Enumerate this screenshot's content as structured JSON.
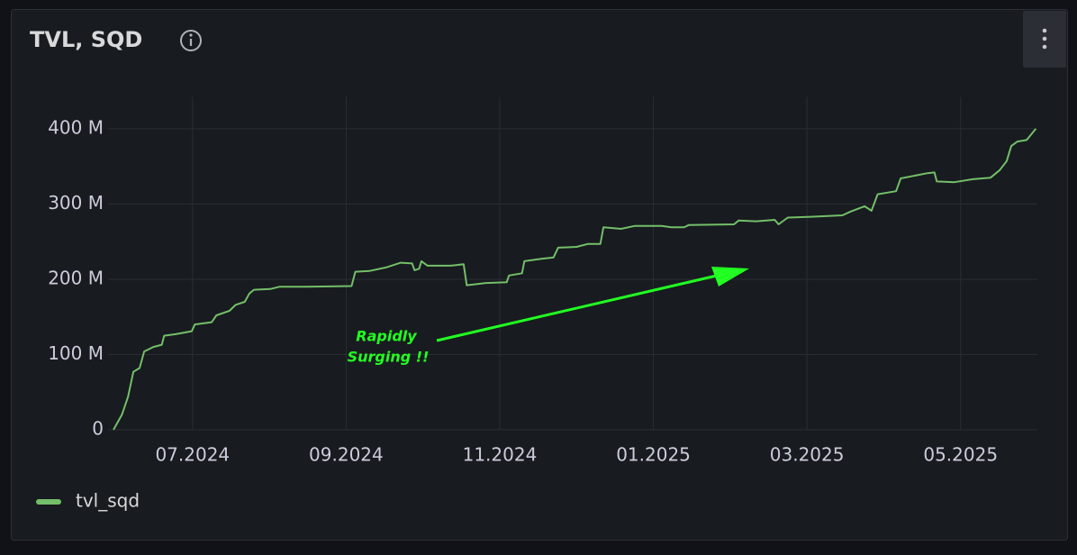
{
  "chart_data": {
    "type": "line",
    "title": "TVL, SQD",
    "x": [
      5.97,
      6.08,
      6.16,
      6.23,
      6.31,
      6.37,
      6.49,
      6.6,
      6.63,
      6.78,
      6.99,
      7.03,
      7.25,
      7.31,
      7.48,
      7.56,
      7.68,
      7.74,
      7.8,
      8.01,
      8.13,
      8.48,
      9.07,
      9.12,
      9.3,
      9.53,
      9.71,
      9.86,
      9.89,
      9.95,
      9.98,
      10.06,
      10.36,
      10.53,
      10.57,
      10.82,
      11.09,
      11.12,
      11.29,
      11.32,
      11.53,
      11.7,
      11.76,
      12.0,
      12.15,
      12.31,
      12.35,
      12.58,
      12.76,
      13.11,
      13.23,
      13.4,
      13.46,
      14.05,
      14.11,
      14.34,
      14.58,
      14.63,
      14.75,
      15.05,
      15.46,
      15.57,
      15.75,
      15.84,
      15.92,
      16.16,
      16.22,
      16.57,
      16.66,
      16.69,
      16.92,
      17.16,
      17.39,
      17.51,
      17.6,
      17.66,
      17.74,
      17.86,
      17.98
    ],
    "series": [
      {
        "name": "tvl_sqd",
        "color": "#73bf69",
        "values": [
          0,
          20000000,
          44000000,
          77000000,
          82000000,
          104000000,
          110000000,
          113000000,
          125000000,
          127000000,
          131000000,
          140000000,
          143000000,
          152000000,
          158000000,
          166000000,
          170000000,
          181000000,
          186000000,
          187000000,
          190000000,
          190000000,
          191000000,
          210000000,
          211000000,
          216000000,
          222000000,
          221000000,
          212000000,
          214000000,
          224000000,
          218000000,
          218000000,
          220000000,
          192000000,
          195000000,
          196000000,
          205000000,
          208000000,
          224000000,
          227000000,
          229000000,
          242000000,
          243000000,
          247000000,
          247000000,
          269000000,
          267000000,
          271000000,
          271000000,
          269000000,
          269000000,
          272000000,
          273000000,
          278000000,
          277000000,
          279000000,
          273000000,
          282000000,
          283000000,
          285000000,
          290000000,
          297000000,
          291000000,
          313000000,
          317000000,
          334000000,
          341000000,
          342000000,
          330000000,
          329000000,
          333000000,
          335000000,
          345000000,
          357000000,
          377000000,
          383000000,
          385000000,
          400000000
        ]
      }
    ],
    "xlim": [
      5.9,
      18.0
    ],
    "xticks": [
      {
        "value": 7,
        "label": "07.2024"
      },
      {
        "value": 9,
        "label": "09.2024"
      },
      {
        "value": 11,
        "label": "11.2024"
      },
      {
        "value": 13,
        "label": "01.2025"
      },
      {
        "value": 15,
        "label": "03.2025"
      },
      {
        "value": 17,
        "label": "05.2025"
      }
    ],
    "ylim": [
      0,
      440000000
    ],
    "yticks": [
      0,
      {
        "value": 100000000,
        "label": "100 M"
      },
      {
        "value": 200000000,
        "label": "200 M"
      },
      {
        "value": 300000000,
        "label": "300 M"
      },
      {
        "value": 400000000,
        "label": "400 M"
      }
    ],
    "grid": true,
    "legend": "bottom-left",
    "annotation": [
      "Rapidly",
      "Surging !!"
    ]
  }
}
